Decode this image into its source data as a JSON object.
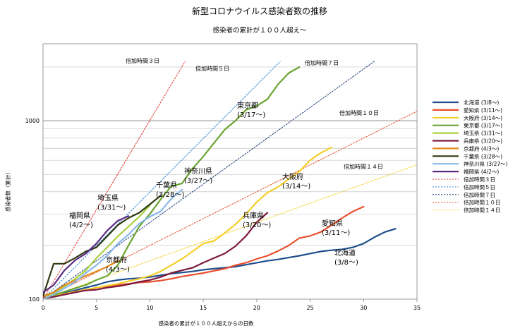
{
  "chart_data": {
    "type": "line",
    "title": "新型コロナウイルス感染者数の推移",
    "subtitle": "感染者の累計が１００人超え〜",
    "xlabel": "感染者の累計が１００人超えからの日数",
    "ylabel": "感染者数（累計）",
    "y_scale": "log",
    "xlim": [
      0,
      35
    ],
    "ylim": [
      100,
      2700
    ],
    "grid": true,
    "legend_position": "right",
    "x_ticks": [
      "0",
      "5",
      "10",
      "15",
      "20",
      "25",
      "30",
      "35"
    ],
    "y_ticks": [
      "100",
      "1000"
    ],
    "series": [
      {
        "name": "北海道 (3/8～)",
        "label": "北海道\n(3/8～)",
        "color": "#1f4e8c",
        "dashed": false,
        "x": [
          0,
          1,
          2,
          3,
          4,
          5,
          6,
          7,
          8,
          9,
          10,
          11,
          12,
          13,
          14,
          15,
          16,
          17,
          18,
          19,
          20,
          21,
          22,
          23,
          24,
          25,
          26,
          27,
          28,
          29,
          30,
          31,
          32,
          33
        ],
        "y": [
          100,
          104,
          108,
          112,
          116,
          120,
          125,
          128,
          130,
          131,
          133,
          136,
          139,
          141,
          143,
          146,
          148,
          150,
          152,
          156,
          160,
          164,
          167,
          171,
          175,
          180,
          185,
          188,
          190,
          195,
          205,
          222,
          238,
          248
        ]
      },
      {
        "name": "愛知県 (3/11～)",
        "label": "愛知県\n(3/11～)",
        "color": "#e8502e",
        "dashed": false,
        "x": [
          0,
          1,
          2,
          3,
          4,
          5,
          6,
          7,
          8,
          9,
          10,
          11,
          12,
          13,
          14,
          15,
          16,
          17,
          18,
          19,
          20,
          21,
          22,
          23,
          24,
          25,
          26,
          27,
          28,
          29,
          30
        ],
        "y": [
          102,
          104,
          107,
          110,
          112,
          116,
          118,
          120,
          122,
          124,
          125,
          127,
          130,
          134,
          137,
          140,
          144,
          148,
          155,
          160,
          168,
          175,
          186,
          200,
          220,
          226,
          238,
          260,
          285,
          310,
          330
        ]
      },
      {
        "name": "大阪府 (3/14～)",
        "label": "大阪府\n(3/14～)",
        "color": "#f4cf2a",
        "dashed": false,
        "x": [
          0,
          1,
          2,
          3,
          4,
          5,
          6,
          7,
          8,
          9,
          10,
          11,
          12,
          13,
          14,
          15,
          16,
          17,
          18,
          19,
          20,
          21,
          22,
          23,
          24,
          25,
          26,
          27
        ],
        "y": [
          100,
          104,
          107,
          110,
          113,
          116,
          119,
          122,
          126,
          130,
          135,
          143,
          155,
          168,
          185,
          205,
          212,
          235,
          262,
          300,
          350,
          395,
          425,
          472,
          520,
          600,
          660,
          708
        ]
      },
      {
        "name": "東京都 (3/17～)",
        "label": "東京都\n(3/17～)",
        "color": "#6aa431",
        "dashed": false,
        "x": [
          0,
          1,
          2,
          3,
          4,
          5,
          6,
          7,
          8,
          9,
          10,
          11,
          12,
          13,
          14,
          15,
          16,
          17,
          18,
          19,
          20,
          21,
          22,
          23,
          24
        ],
        "y": [
          100,
          105,
          110,
          115,
          120,
          128,
          135,
          155,
          200,
          255,
          300,
          362,
          430,
          445,
          540,
          630,
          750,
          890,
          1000,
          1150,
          1210,
          1320,
          1600,
          1850,
          2000
        ]
      },
      {
        "name": "埼玉県 (3/31～)",
        "label": "埼玉県\n(3/31～)",
        "color": "#a9d040",
        "dashed": false,
        "x": [
          0,
          1,
          2,
          3,
          4,
          5,
          6,
          7,
          8,
          9,
          10
        ],
        "y": [
          100,
          108,
          118,
          130,
          145,
          170,
          195,
          225,
          255,
          290,
          335
        ]
      },
      {
        "name": "兵庫県 (3/20～)",
        "label": "兵庫県\n(3/20～)",
        "color": "#7b1a3d",
        "dashed": false,
        "x": [
          0,
          1,
          2,
          3,
          4,
          5,
          6,
          7,
          8,
          9,
          10,
          11,
          12,
          13,
          14,
          15,
          16,
          17,
          18,
          19,
          20,
          21
        ],
        "y": [
          101,
          103,
          106,
          109,
          112,
          113,
          116,
          118,
          121,
          125,
          128,
          133,
          140,
          145,
          150,
          160,
          170,
          180,
          198,
          226,
          270,
          305
        ]
      },
      {
        "name": "京都府 (4/3～)",
        "label": "京都府\n(4/3～)",
        "color": "#e58a1e",
        "dashed": false,
        "x": [
          0,
          1,
          2,
          3,
          4,
          5,
          6,
          7
        ],
        "y": [
          104,
          109,
          120,
          127,
          135,
          143,
          152,
          164
        ]
      },
      {
        "name": "千葉県 (3/28～)",
        "label": "千葉県\n(3/28～)",
        "color": "#2d3a12",
        "dashed": false,
        "x": [
          0,
          1,
          2,
          3,
          4,
          5,
          6,
          7,
          8,
          9,
          10,
          11
        ],
        "y": [
          104,
          158,
          158,
          170,
          185,
          195,
          225,
          260,
          285,
          305,
          340,
          380
        ]
      },
      {
        "name": "神奈川県 (3/27～)",
        "label": "神奈川県\n(3/27～)",
        "color": "#8ab8e8",
        "dashed": false,
        "x": [
          0,
          1,
          2,
          3,
          4,
          5,
          6,
          7,
          8,
          9,
          10,
          11,
          12,
          13
        ],
        "y": [
          100,
          106,
          115,
          125,
          140,
          155,
          175,
          205,
          230,
          265,
          290,
          310,
          365,
          410
        ]
      },
      {
        "name": "福岡県 (4/2～)",
        "label": "福岡県\n(4/2～)",
        "color": "#5a2a82",
        "dashed": false,
        "x": [
          0,
          1,
          2,
          3,
          4,
          5,
          6,
          7,
          8
        ],
        "y": [
          109,
          120,
          145,
          165,
          180,
          205,
          242,
          275,
          292
        ]
      },
      {
        "name": "倍加時間３日",
        "label": "倍加時間３日",
        "color": "#d9342b",
        "dashed": true,
        "doubling_days": 3,
        "x": [
          0,
          13.3
        ],
        "y": [
          100,
          2150
        ]
      },
      {
        "name": "倍加時間５日",
        "label": "倍加時間５日",
        "color": "#3d84d1",
        "dashed": true,
        "doubling_days": 5,
        "x": [
          0,
          22.2
        ],
        "y": [
          100,
          2150
        ]
      },
      {
        "name": "倍加時間７日",
        "label": "倍加時間７日",
        "color": "#1f3f74",
        "dashed": true,
        "doubling_days": 7,
        "x": [
          0,
          31.0
        ],
        "y": [
          100,
          2150
        ]
      },
      {
        "name": "倍加時間１０日",
        "label": "倍加時間１０日",
        "color": "#e8502e",
        "dashed": true,
        "doubling_days": 10,
        "x": [
          0,
          35
        ],
        "y": [
          100,
          1130
        ]
      },
      {
        "name": "倍加時間１４日",
        "label": "倍加時間１４日",
        "color": "#f4cf2a",
        "dashed": true,
        "doubling_days": 14,
        "x": [
          0,
          35
        ],
        "y": [
          100,
          566
        ]
      }
    ]
  }
}
